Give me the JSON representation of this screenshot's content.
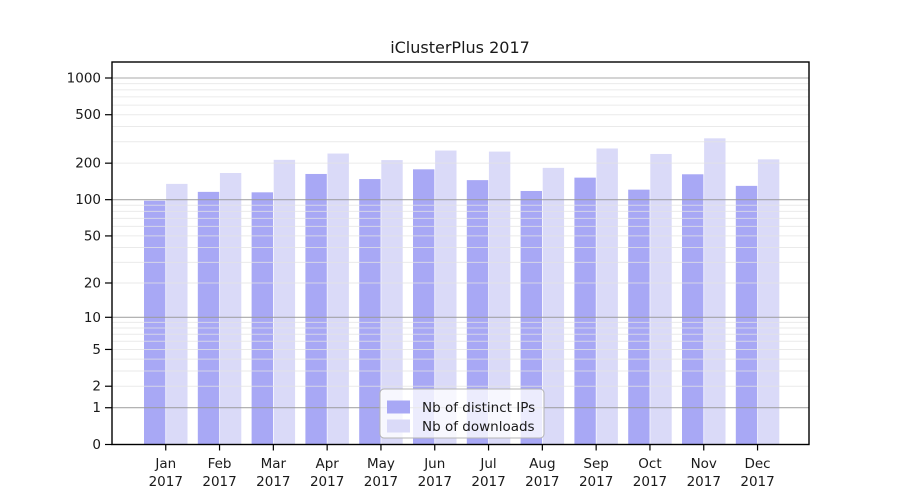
{
  "chart_data": {
    "type": "bar",
    "title": "iClusterPlus 2017",
    "categories": [
      "Jan",
      "Feb",
      "Mar",
      "Apr",
      "May",
      "Jun",
      "Jul",
      "Aug",
      "Sep",
      "Oct",
      "Nov",
      "Dec"
    ],
    "year_label": "2017",
    "series": [
      {
        "name": "Nb of distinct IPs",
        "color": "#a8a8f5",
        "values": [
          98,
          116,
          115,
          163,
          148,
          178,
          145,
          118,
          152,
          121,
          162,
          130
        ]
      },
      {
        "name": "Nb of downloads",
        "color": "#dadaf8",
        "values": [
          135,
          166,
          213,
          240,
          212,
          254,
          249,
          183,
          264,
          238,
          320,
          215
        ]
      }
    ],
    "y_ticks": [
      0,
      1,
      2,
      5,
      10,
      20,
      50,
      100,
      200,
      500,
      1000
    ],
    "ylim": [
      0,
      1000
    ],
    "yscale": "log10(value+1)",
    "grid": {
      "on": true,
      "major_lines_at": [
        1,
        10,
        100,
        1000
      ],
      "major_color": "#9a9a9a",
      "minor_color": "#e4e4e4"
    },
    "legend_position": "lower center",
    "axis_color": "#000000",
    "background_color": "#ffffff"
  }
}
